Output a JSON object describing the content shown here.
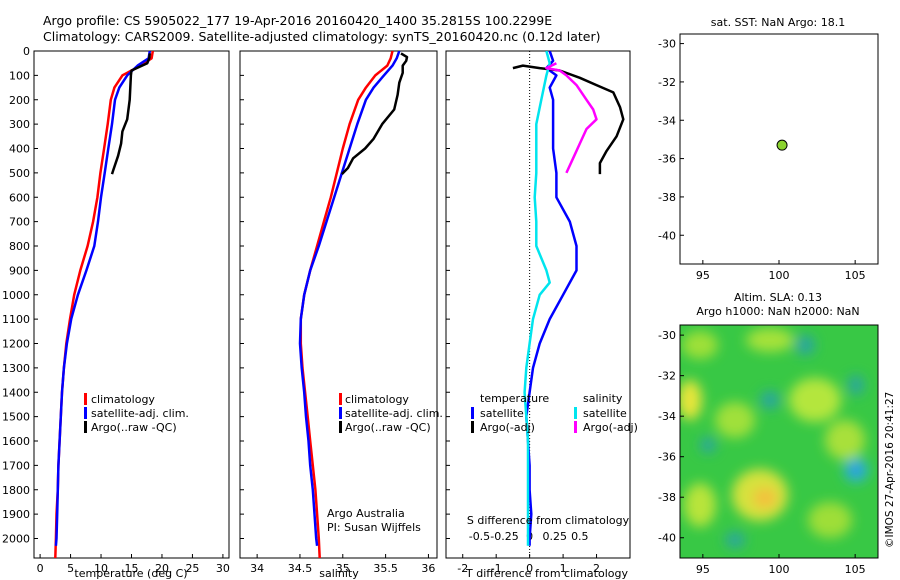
{
  "header": {
    "line1": "Argo profile: CS 5905022_177 19-Apr-2016 20160420_1400 35.2815S 100.2299E",
    "line2": "Climatology: CARS2009. Satellite-adjusted climatology: synTS_20160420.nc (0.12d later)"
  },
  "credit": "©IMOS 27-Apr-2016 20:41:27",
  "colors": {
    "climatology": "#ff0000",
    "satellite": "#0000ff",
    "argo": "#000000",
    "salinity_satellite": "#00e5ee",
    "salinity_argo": "#ff00ff",
    "map_marker": "#8bd32f"
  },
  "chart_data": [
    {
      "id": "temperature",
      "type": "line",
      "xlabel": "temperature (deg C)",
      "ylabel": "",
      "xlim": [
        -1,
        31
      ],
      "ylim": [
        2080,
        0
      ],
      "xticks": [
        0,
        5,
        10,
        15,
        20,
        25,
        30
      ],
      "yticks": [
        0,
        100,
        200,
        300,
        400,
        500,
        600,
        700,
        800,
        900,
        1000,
        1100,
        1200,
        1300,
        1400,
        1500,
        1600,
        1700,
        1800,
        1900,
        2000
      ],
      "legend": [
        "climatology",
        "satellite-adj. clim.",
        "Argo(..raw -QC)"
      ],
      "series": [
        {
          "name": "climatology",
          "color": "#ff0000",
          "points": [
            [
              18.5,
              0
            ],
            [
              18.3,
              30
            ],
            [
              16.5,
              60
            ],
            [
              13.5,
              100
            ],
            [
              12.2,
              150
            ],
            [
              11.6,
              200
            ],
            [
              11.1,
              300
            ],
            [
              10.5,
              400
            ],
            [
              9.9,
              500
            ],
            [
              9.4,
              600
            ],
            [
              8.7,
              700
            ],
            [
              7.8,
              800
            ],
            [
              6.6,
              900
            ],
            [
              5.6,
              1000
            ],
            [
              4.9,
              1100
            ],
            [
              4.3,
              1200
            ],
            [
              3.9,
              1300
            ],
            [
              3.6,
              1400
            ],
            [
              3.4,
              1500
            ],
            [
              3.2,
              1600
            ],
            [
              3.0,
              1700
            ],
            [
              2.9,
              1800
            ],
            [
              2.7,
              1900
            ],
            [
              2.6,
              2000
            ],
            [
              2.5,
              2080
            ]
          ]
        },
        {
          "name": "satellite-adj. clim.",
          "color": "#0000ff",
          "points": [
            [
              18.0,
              0
            ],
            [
              17.8,
              30
            ],
            [
              16.0,
              60
            ],
            [
              14.3,
              100
            ],
            [
              13.0,
              150
            ],
            [
              12.3,
              200
            ],
            [
              11.8,
              300
            ],
            [
              11.2,
              400
            ],
            [
              10.6,
              500
            ],
            [
              10.0,
              600
            ],
            [
              9.5,
              700
            ],
            [
              8.9,
              800
            ],
            [
              7.6,
              900
            ],
            [
              6.2,
              1000
            ],
            [
              5.1,
              1100
            ],
            [
              4.4,
              1200
            ],
            [
              3.9,
              1300
            ],
            [
              3.6,
              1400
            ],
            [
              3.4,
              1500
            ],
            [
              3.2,
              1600
            ],
            [
              3.0,
              1700
            ],
            [
              2.9,
              1800
            ],
            [
              2.8,
              1900
            ],
            [
              2.7,
              2000
            ],
            [
              2.6,
              2030
            ]
          ]
        },
        {
          "name": "Argo(..raw -QC)",
          "color": "#000000",
          "points": [
            [
              18.0,
              10
            ],
            [
              17.9,
              30
            ],
            [
              17.6,
              50
            ],
            [
              15.0,
              80
            ],
            [
              14.9,
              100
            ],
            [
              14.8,
              150
            ],
            [
              14.7,
              200
            ],
            [
              14.3,
              280
            ],
            [
              13.5,
              330
            ],
            [
              13.3,
              380
            ],
            [
              12.8,
              430
            ],
            [
              12.0,
              490
            ],
            [
              11.8,
              505
            ]
          ]
        }
      ]
    },
    {
      "id": "salinity",
      "type": "line",
      "xlabel": "salinity",
      "ylabel": "",
      "xlim": [
        33.8,
        36.1
      ],
      "ylim": [
        2080,
        0
      ],
      "xticks": [
        34,
        34.5,
        35,
        35.5,
        36
      ],
      "legend": [
        "climatology",
        "satellite-adj. clim.",
        "Argo(..raw -QC)"
      ],
      "annotation": [
        "Argo Australia",
        "PI: Susan Wijffels"
      ],
      "series": [
        {
          "name": "climatology",
          "color": "#ff0000",
          "points": [
            [
              35.58,
              0
            ],
            [
              35.56,
              30
            ],
            [
              35.52,
              60
            ],
            [
              35.38,
              100
            ],
            [
              35.27,
              150
            ],
            [
              35.18,
              200
            ],
            [
              35.08,
              300
            ],
            [
              35.0,
              400
            ],
            [
              34.93,
              500
            ],
            [
              34.86,
              600
            ],
            [
              34.78,
              700
            ],
            [
              34.7,
              800
            ],
            [
              34.62,
              900
            ],
            [
              34.55,
              1000
            ],
            [
              34.51,
              1100
            ],
            [
              34.51,
              1200
            ],
            [
              34.53,
              1300
            ],
            [
              34.56,
              1400
            ],
            [
              34.59,
              1500
            ],
            [
              34.62,
              1600
            ],
            [
              34.65,
              1700
            ],
            [
              34.68,
              1800
            ],
            [
              34.7,
              1900
            ],
            [
              34.72,
              2000
            ],
            [
              34.73,
              2080
            ]
          ]
        },
        {
          "name": "satellite-adj. clim.",
          "color": "#0000ff",
          "points": [
            [
              35.66,
              0
            ],
            [
              35.63,
              30
            ],
            [
              35.58,
              60
            ],
            [
              35.48,
              100
            ],
            [
              35.36,
              150
            ],
            [
              35.27,
              200
            ],
            [
              35.17,
              300
            ],
            [
              35.08,
              400
            ],
            [
              34.99,
              500
            ],
            [
              34.9,
              600
            ],
            [
              34.81,
              700
            ],
            [
              34.72,
              800
            ],
            [
              34.62,
              900
            ],
            [
              34.55,
              1000
            ],
            [
              34.51,
              1100
            ],
            [
              34.5,
              1200
            ],
            [
              34.52,
              1300
            ],
            [
              34.55,
              1400
            ],
            [
              34.57,
              1500
            ],
            [
              34.6,
              1600
            ],
            [
              34.62,
              1700
            ],
            [
              34.65,
              1800
            ],
            [
              34.67,
              1900
            ],
            [
              34.69,
              2000
            ],
            [
              34.7,
              2030
            ]
          ]
        },
        {
          "name": "Argo(..raw -QC)",
          "color": "#000000",
          "points": [
            [
              35.68,
              10
            ],
            [
              35.75,
              25
            ],
            [
              35.74,
              40
            ],
            [
              35.7,
              60
            ],
            [
              35.7,
              90
            ],
            [
              35.66,
              130
            ],
            [
              35.64,
              180
            ],
            [
              35.6,
              240
            ],
            [
              35.46,
              300
            ],
            [
              35.36,
              360
            ],
            [
              35.26,
              400
            ],
            [
              35.12,
              440
            ],
            [
              35.06,
              480
            ],
            [
              34.99,
              505
            ]
          ]
        }
      ]
    },
    {
      "id": "difference",
      "type": "line",
      "xlabel": "T difference from climatology",
      "xlabel_top": "S difference from climatology",
      "xlim": [
        -2.5,
        3
      ],
      "ylim": [
        2080,
        0
      ],
      "xticks": [
        -2,
        -1,
        0,
        1,
        2
      ],
      "xtick_labels": [
        "-2",
        "-1",
        "0",
        "1",
        "2"
      ],
      "secondary_ticks": [
        -0.5,
        -0.25,
        0,
        0.25,
        0.5
      ],
      "secondary_tick_labels": [
        "-0.5",
        "-0.25",
        "0",
        "0.25",
        "0.5"
      ],
      "legend_groups": [
        {
          "title": "temperature",
          "items": [
            "satellite",
            "Argo(-adj)"
          ]
        },
        {
          "title": "salinity",
          "items": [
            "satellite",
            "Argo(-adj)"
          ]
        }
      ],
      "series": [
        {
          "name": "temperature satellite",
          "color": "#0000ff",
          "points": [
            [
              0.6,
              0
            ],
            [
              0.7,
              40
            ],
            [
              0.5,
              70
            ],
            [
              0.8,
              100
            ],
            [
              0.6,
              150
            ],
            [
              0.7,
              200
            ],
            [
              0.7,
              300
            ],
            [
              0.7,
              400
            ],
            [
              0.8,
              500
            ],
            [
              0.8,
              600
            ],
            [
              1.2,
              700
            ],
            [
              1.4,
              800
            ],
            [
              1.4,
              900
            ],
            [
              1.0,
              1000
            ],
            [
              0.6,
              1100
            ],
            [
              0.3,
              1200
            ],
            [
              0.1,
              1300
            ],
            [
              0.0,
              1400
            ],
            [
              -0.1,
              1500
            ],
            [
              -0.05,
              1600
            ],
            [
              0.0,
              1700
            ],
            [
              0.0,
              1800
            ],
            [
              0.05,
              1900
            ],
            [
              0.0,
              2000
            ],
            [
              0.0,
              2030
            ]
          ]
        },
        {
          "name": "temperature Argo(-adj)",
          "color": "#000000",
          "points": [
            [
              -0.5,
              70
            ],
            [
              -0.2,
              60
            ],
            [
              0.3,
              70
            ],
            [
              0.9,
              80
            ],
            [
              1.5,
              110
            ],
            [
              2.0,
              140
            ],
            [
              2.5,
              170
            ],
            [
              2.7,
              230
            ],
            [
              2.8,
              280
            ],
            [
              2.6,
              350
            ],
            [
              2.3,
              410
            ],
            [
              2.1,
              460
            ],
            [
              2.1,
              505
            ]
          ]
        },
        {
          "name": "salinity satellite",
          "color": "#00e5ee",
          "points": [
            [
              0.5,
              0
            ],
            [
              0.6,
              50
            ],
            [
              0.5,
              100
            ],
            [
              0.35,
              200
            ],
            [
              0.2,
              300
            ],
            [
              0.2,
              400
            ],
            [
              0.2,
              500
            ],
            [
              0.15,
              600
            ],
            [
              0.2,
              700
            ],
            [
              0.2,
              800
            ],
            [
              0.5,
              900
            ],
            [
              0.6,
              950
            ],
            [
              0.3,
              1000
            ],
            [
              0.1,
              1100
            ],
            [
              0.0,
              1200
            ],
            [
              -0.1,
              1300
            ],
            [
              -0.15,
              1400
            ],
            [
              -0.1,
              1500
            ],
            [
              -0.05,
              1600
            ],
            [
              -0.05,
              1700
            ],
            [
              -0.05,
              1800
            ],
            [
              -0.05,
              1900
            ],
            [
              -0.05,
              2000
            ],
            [
              -0.05,
              2030
            ]
          ]
        },
        {
          "name": "salinity Argo(-adj)",
          "color": "#ff00ff",
          "points": [
            [
              0.8,
              50
            ],
            [
              0.5,
              70
            ],
            [
              0.9,
              80
            ],
            [
              1.1,
              100
            ],
            [
              1.4,
              140
            ],
            [
              1.7,
              200
            ],
            [
              1.9,
              240
            ],
            [
              2.0,
              280
            ],
            [
              1.7,
              320
            ],
            [
              1.5,
              380
            ],
            [
              1.3,
              440
            ],
            [
              1.1,
              500
            ]
          ]
        }
      ]
    },
    {
      "id": "sst-map",
      "type": "scatter",
      "title": "sat. SST: NaN Argo: 18.1",
      "xlim": [
        93.5,
        106.5
      ],
      "ylim": [
        -41.5,
        -29.5
      ],
      "xticks": [
        95,
        100,
        105
      ],
      "yticks": [
        -30,
        -32,
        -34,
        -36,
        -38,
        -40
      ],
      "points": [
        [
          100.2,
          -35.3
        ]
      ]
    },
    {
      "id": "sla-map",
      "type": "heatmap",
      "title_lines": [
        "Altim. SLA: 0.13",
        "Argo h1000: NaN h2000: NaN"
      ],
      "xlim": [
        93.5,
        106.5
      ],
      "ylim": [
        -41,
        -29.5
      ],
      "xticks": [
        95,
        100,
        105
      ],
      "yticks": [
        -30,
        -32,
        -34,
        -36,
        -38,
        -40
      ]
    }
  ]
}
